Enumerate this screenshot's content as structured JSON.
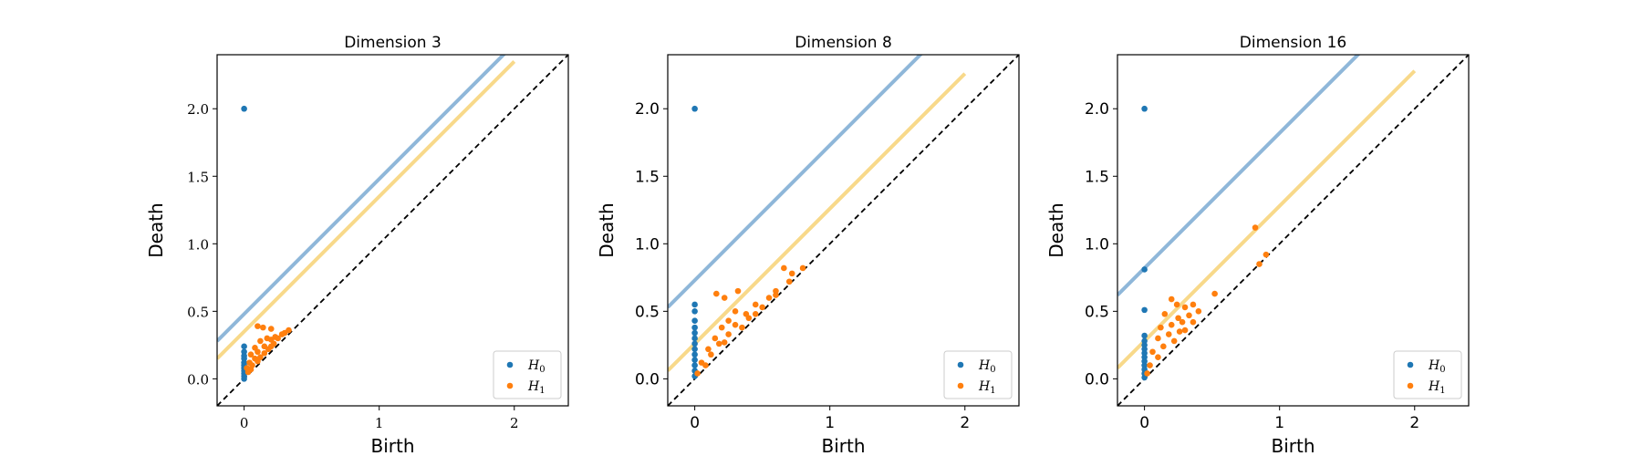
{
  "chart_data": [
    {
      "type": "scatter",
      "title": "Dimension 3",
      "xlabel": "Birth",
      "ylabel": "Death",
      "xlim": [
        -0.2,
        2.4
      ],
      "ylim": [
        -0.2,
        2.4
      ],
      "xticks": [
        "0",
        "1",
        "2"
      ],
      "yticks": [
        "0.0",
        "0.5",
        "1.0",
        "1.5",
        "2.0"
      ],
      "legend": {
        "placement": "lower-right",
        "entries": [
          "H0",
          "H1"
        ]
      },
      "colors": {
        "H0": "#1f77b4",
        "H1": "#ff7f0e",
        "band_h0": "#8fb7d9",
        "band_h1": "#f8d98a"
      },
      "diagonal": "dashed",
      "bands": {
        "H0_offset": 0.48,
        "H1_offset": 0.35,
        "band_end": 2.0
      },
      "series": [
        {
          "name": "H0",
          "points": [
            [
              0,
              2.0
            ],
            [
              0,
              0.24
            ],
            [
              0,
              0.2
            ],
            [
              0,
              0.17
            ],
            [
              0,
              0.15
            ],
            [
              0,
              0.12
            ],
            [
              0,
              0.1
            ],
            [
              0,
              0.08
            ],
            [
              0,
              0.06
            ],
            [
              0,
              0.04
            ],
            [
              0,
              0.02
            ],
            [
              0,
              0.0
            ]
          ]
        },
        {
          "name": "H1",
          "points": [
            [
              0.1,
              0.39
            ],
            [
              0.14,
              0.38
            ],
            [
              0.2,
              0.37
            ],
            [
              0.23,
              0.31
            ],
            [
              0.17,
              0.3
            ],
            [
              0.12,
              0.28
            ],
            [
              0.2,
              0.29
            ],
            [
              0.28,
              0.33
            ],
            [
              0.33,
              0.36
            ],
            [
              0.08,
              0.23
            ],
            [
              0.15,
              0.24
            ],
            [
              0.22,
              0.26
            ],
            [
              0.05,
              0.18
            ],
            [
              0.1,
              0.2
            ],
            [
              0.18,
              0.22
            ],
            [
              0.04,
              0.12
            ],
            [
              0.08,
              0.15
            ],
            [
              0.12,
              0.16
            ],
            [
              0.25,
              0.3
            ],
            [
              0.02,
              0.08
            ],
            [
              0.06,
              0.1
            ],
            [
              0.1,
              0.13
            ],
            [
              0.15,
              0.19
            ],
            [
              0.03,
              0.05
            ],
            [
              0.05,
              0.07
            ],
            [
              0.3,
              0.34
            ],
            [
              0.2,
              0.24
            ]
          ]
        }
      ]
    },
    {
      "type": "scatter",
      "title": "Dimension 8",
      "xlabel": "Birth",
      "ylabel": "Death",
      "xlim": [
        -0.2,
        2.4
      ],
      "ylim": [
        -0.2,
        2.4
      ],
      "xticks": [
        "0",
        "1",
        "2"
      ],
      "yticks": [
        "0.0",
        "0.5",
        "1.0",
        "1.5",
        "2.0"
      ],
      "legend": {
        "placement": "lower-right",
        "entries": [
          "H0",
          "H1"
        ]
      },
      "colors": {
        "H0": "#1f77b4",
        "H1": "#ff7f0e",
        "band_h0": "#8fb7d9",
        "band_h1": "#f8d98a"
      },
      "diagonal": "dashed",
      "bands": {
        "H0_offset": 0.73,
        "H1_offset": 0.26,
        "band_end": 2.0
      },
      "series": [
        {
          "name": "H0",
          "points": [
            [
              0,
              2.0
            ],
            [
              0,
              0.55
            ],
            [
              0,
              0.5
            ],
            [
              0,
              0.43
            ],
            [
              0,
              0.38
            ],
            [
              0,
              0.34
            ],
            [
              0,
              0.3
            ],
            [
              0,
              0.26
            ],
            [
              0,
              0.22
            ],
            [
              0,
              0.18
            ],
            [
              0,
              0.14
            ],
            [
              0,
              0.1
            ],
            [
              0,
              0.06
            ],
            [
              0,
              0.02
            ]
          ]
        },
        {
          "name": "H1",
          "points": [
            [
              0.16,
              0.63
            ],
            [
              0.22,
              0.6
            ],
            [
              0.32,
              0.65
            ],
            [
              0.6,
              0.65
            ],
            [
              0.66,
              0.82
            ],
            [
              0.72,
              0.78
            ],
            [
              0.8,
              0.82
            ],
            [
              0.3,
              0.5
            ],
            [
              0.38,
              0.48
            ],
            [
              0.25,
              0.43
            ],
            [
              0.45,
              0.55
            ],
            [
              0.5,
              0.53
            ],
            [
              0.55,
              0.6
            ],
            [
              0.2,
              0.38
            ],
            [
              0.3,
              0.4
            ],
            [
              0.4,
              0.45
            ],
            [
              0.15,
              0.3
            ],
            [
              0.25,
              0.33
            ],
            [
              0.1,
              0.22
            ],
            [
              0.18,
              0.26
            ],
            [
              0.35,
              0.38
            ],
            [
              0.05,
              0.12
            ],
            [
              0.12,
              0.18
            ],
            [
              0.22,
              0.27
            ],
            [
              0.08,
              0.1
            ],
            [
              0.02,
              0.04
            ],
            [
              0.6,
              0.62
            ],
            [
              0.7,
              0.72
            ],
            [
              0.45,
              0.48
            ]
          ]
        }
      ]
    },
    {
      "type": "scatter",
      "title": "Dimension 16",
      "xlabel": "Birth",
      "ylabel": "Death",
      "xlim": [
        -0.2,
        2.4
      ],
      "ylim": [
        -0.2,
        2.4
      ],
      "xticks": [
        "0",
        "1",
        "2"
      ],
      "yticks": [
        "0.0",
        "0.5",
        "1.0",
        "1.5",
        "2.0"
      ],
      "legend": {
        "placement": "lower-right",
        "entries": [
          "H0",
          "H1"
        ]
      },
      "colors": {
        "H0": "#1f77b4",
        "H1": "#ff7f0e",
        "band_h0": "#8fb7d9",
        "band_h1": "#f8d98a"
      },
      "diagonal": "dashed",
      "bands": {
        "H0_offset": 0.82,
        "H1_offset": 0.28,
        "band_end": 2.0
      },
      "series": [
        {
          "name": "H0",
          "points": [
            [
              0,
              2.0
            ],
            [
              0,
              0.81
            ],
            [
              0,
              0.51
            ],
            [
              0,
              0.32
            ],
            [
              0,
              0.28
            ],
            [
              0,
              0.25
            ],
            [
              0,
              0.22
            ],
            [
              0,
              0.19
            ],
            [
              0,
              0.16
            ],
            [
              0,
              0.13
            ],
            [
              0,
              0.1
            ],
            [
              0,
              0.07
            ],
            [
              0,
              0.04
            ],
            [
              0,
              0.01
            ]
          ]
        },
        {
          "name": "H1",
          "points": [
            [
              0.82,
              1.12
            ],
            [
              0.9,
              0.92
            ],
            [
              0.85,
              0.85
            ],
            [
              0.2,
              0.59
            ],
            [
              0.24,
              0.55
            ],
            [
              0.52,
              0.63
            ],
            [
              0.3,
              0.53
            ],
            [
              0.36,
              0.55
            ],
            [
              0.4,
              0.5
            ],
            [
              0.15,
              0.48
            ],
            [
              0.25,
              0.45
            ],
            [
              0.33,
              0.47
            ],
            [
              0.12,
              0.38
            ],
            [
              0.2,
              0.4
            ],
            [
              0.28,
              0.42
            ],
            [
              0.1,
              0.3
            ],
            [
              0.18,
              0.33
            ],
            [
              0.26,
              0.35
            ],
            [
              0.06,
              0.2
            ],
            [
              0.14,
              0.24
            ],
            [
              0.22,
              0.28
            ],
            [
              0.04,
              0.1
            ],
            [
              0.1,
              0.16
            ],
            [
              0.02,
              0.04
            ],
            [
              0.3,
              0.36
            ],
            [
              0.36,
              0.42
            ]
          ]
        }
      ]
    }
  ]
}
